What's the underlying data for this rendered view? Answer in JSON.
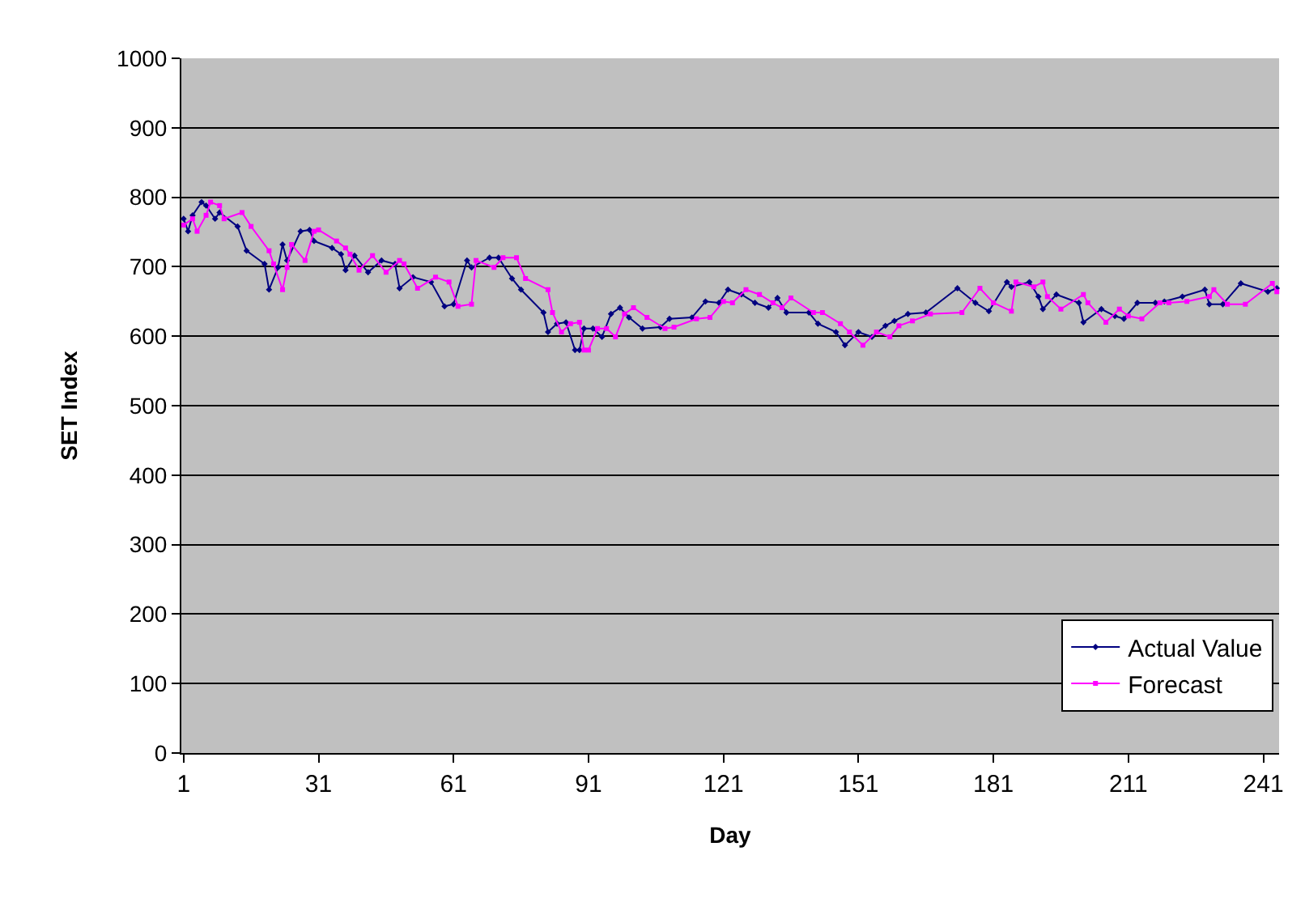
{
  "chart_data": {
    "type": "line",
    "xlabel": "Day",
    "ylabel": "SET Index",
    "xlim": [
      0.5,
      244.5
    ],
    "xticks": [
      1,
      31,
      61,
      91,
      121,
      151,
      181,
      211,
      241
    ],
    "ylim": [
      0,
      1000
    ],
    "yticks": [
      0,
      100,
      200,
      300,
      400,
      500,
      600,
      700,
      800,
      900,
      1000
    ],
    "grid": "y",
    "legend": "bottom right",
    "line_style": "solid",
    "series": [
      {
        "name": "Actual Value",
        "color": "#000080",
        "marker": "diamond",
        "x": [
          1,
          2,
          3,
          5,
          6,
          8,
          9,
          13,
          15,
          19,
          20,
          22,
          23,
          24,
          27,
          29,
          30,
          34,
          36,
          37,
          39,
          42,
          45,
          48,
          49,
          52,
          56,
          59,
          61,
          64,
          65,
          69,
          71,
          74,
          76,
          81,
          82,
          84,
          86,
          88,
          89,
          90,
          92,
          94,
          96,
          98,
          100,
          103,
          107,
          109,
          114,
          117,
          120,
          122,
          125,
          128,
          131,
          133,
          135,
          140,
          142,
          146,
          148,
          151,
          154,
          157,
          159,
          162,
          166,
          173,
          177,
          180,
          184,
          185,
          189,
          191,
          192,
          195,
          200,
          201,
          205,
          208,
          210,
          213,
          217,
          219,
          223,
          228,
          229,
          232,
          236,
          242,
          244
        ],
        "values": [
          769,
          751,
          774,
          793,
          788,
          769,
          778,
          758,
          723,
          704,
          667,
          699,
          732,
          709,
          751,
          753,
          737,
          727,
          718,
          695,
          716,
          692,
          709,
          704,
          669,
          685,
          678,
          643,
          646,
          709,
          699,
          713,
          713,
          683,
          667,
          634,
          606,
          618,
          620,
          580,
          580,
          611,
          611,
          599,
          632,
          641,
          627,
          611,
          613,
          625,
          627,
          650,
          648,
          667,
          660,
          648,
          641,
          655,
          634,
          634,
          618,
          606,
          587,
          606,
          599,
          615,
          622,
          632,
          634,
          669,
          648,
          636,
          678,
          671,
          678,
          657,
          639,
          660,
          648,
          620,
          639,
          629,
          625,
          648,
          648,
          650,
          657,
          667,
          646,
          646,
          676,
          664,
          669
        ]
      },
      {
        "name": "Forecast",
        "color": "#ff00ff",
        "marker": "square",
        "x": [
          1,
          3,
          4,
          6,
          7,
          9,
          10,
          14,
          16,
          20,
          21,
          23,
          24,
          25,
          28,
          30,
          31,
          35,
          37,
          38,
          40,
          43,
          46,
          49,
          50,
          53,
          57,
          60,
          62,
          65,
          66,
          70,
          72,
          75,
          77,
          82,
          83,
          85,
          87,
          89,
          90,
          91,
          93,
          95,
          97,
          99,
          101,
          104,
          108,
          110,
          115,
          118,
          121,
          123,
          126,
          129,
          132,
          134,
          136,
          141,
          143,
          147,
          149,
          152,
          155,
          158,
          160,
          163,
          167,
          174,
          178,
          181,
          185,
          186,
          190,
          192,
          193,
          196,
          201,
          202,
          206,
          209,
          211,
          214,
          218,
          220,
          224,
          229,
          230,
          233,
          237,
          243,
          244
        ],
        "values": [
          760,
          769,
          751,
          774,
          793,
          788,
          769,
          778,
          758,
          723,
          704,
          667,
          699,
          732,
          709,
          751,
          753,
          737,
          727,
          718,
          695,
          716,
          692,
          709,
          704,
          669,
          685,
          678,
          643,
          646,
          709,
          699,
          713,
          713,
          683,
          667,
          634,
          606,
          618,
          620,
          580,
          580,
          611,
          611,
          599,
          632,
          641,
          627,
          611,
          613,
          625,
          627,
          650,
          648,
          667,
          660,
          648,
          641,
          655,
          634,
          634,
          618,
          606,
          587,
          606,
          599,
          615,
          622,
          632,
          634,
          669,
          648,
          636,
          678,
          671,
          678,
          657,
          639,
          660,
          648,
          620,
          639,
          629,
          625,
          648,
          648,
          650,
          657,
          667,
          646,
          646,
          676,
          664
        ]
      }
    ]
  }
}
